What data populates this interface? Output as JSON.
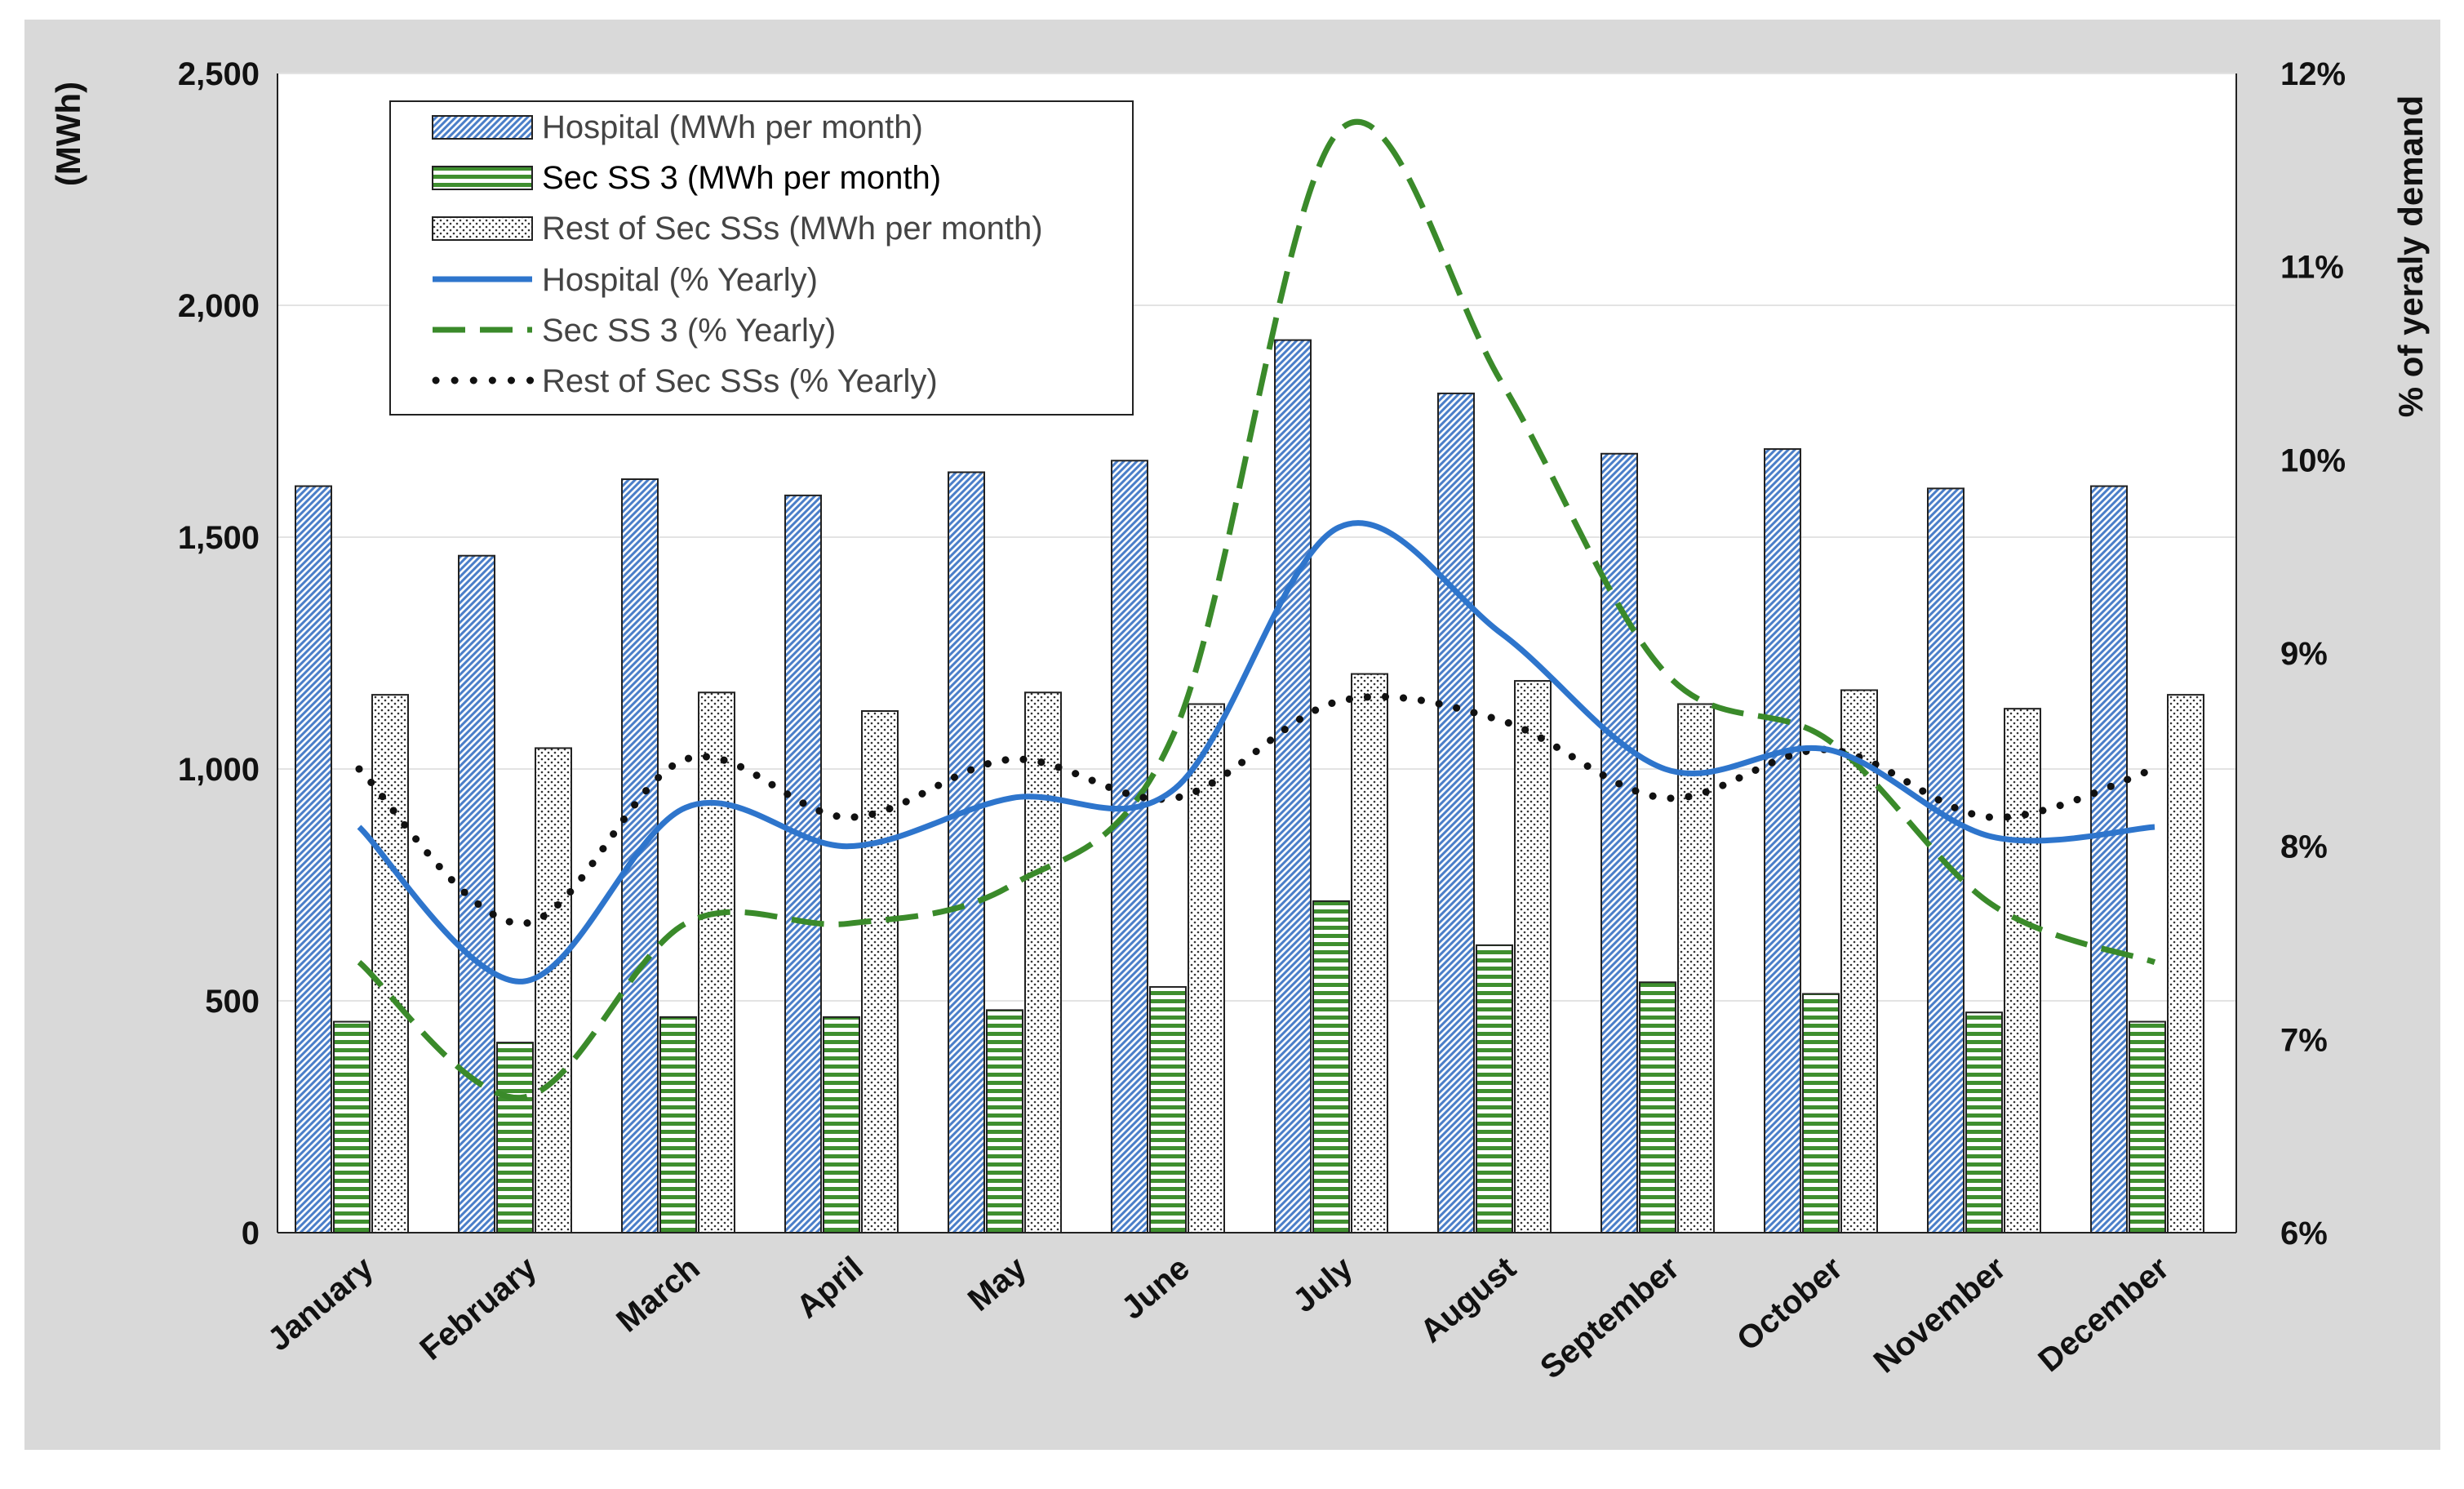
{
  "chart_data": {
    "type": "bar",
    "title": "",
    "categories": [
      "January",
      "February",
      "March",
      "April",
      "May",
      "June",
      "July",
      "August",
      "September",
      "October",
      "November",
      "December"
    ],
    "xlabel": "",
    "ylabel": "(MWh)",
    "ylabel_right": "% of yeraly demand",
    "ylim": [
      0,
      2500
    ],
    "y_ticks": [
      "0",
      "500",
      "1,000",
      "1,500",
      "2,000",
      "2,500"
    ],
    "y_tick_values": [
      0,
      500,
      1000,
      1500,
      2000,
      2500
    ],
    "ylim_right": [
      6,
      12
    ],
    "y_ticks_right": [
      "6%",
      "7%",
      "8%",
      "9%",
      "10%",
      "11%",
      "12%"
    ],
    "y_tick_values_right": [
      6,
      7,
      8,
      9,
      10,
      11,
      12
    ],
    "grid": true,
    "legend_position": "top-left",
    "bar_series": [
      {
        "name": "Hospital (MWh per month)",
        "values": [
          1610,
          1460,
          1625,
          1590,
          1640,
          1665,
          1925,
          1810,
          1680,
          1690,
          1605,
          1610
        ],
        "color": "#4a7ec8",
        "pattern": "diagonal"
      },
      {
        "name": "Sec SS 3 (MWh per month)",
        "values": [
          455,
          410,
          465,
          465,
          480,
          530,
          715,
          620,
          540,
          515,
          475,
          455
        ],
        "color": "#3f8f2f",
        "pattern": "horizontal"
      },
      {
        "name": "Rest of Sec SSs (MWh per month)",
        "values": [
          1160,
          1045,
          1165,
          1125,
          1165,
          1140,
          1205,
          1190,
          1140,
          1170,
          1130,
          1160
        ],
        "color": "#444444",
        "pattern": "dots"
      }
    ],
    "line_series": [
      {
        "name": "Hospital (% Yearly)",
        "values": [
          8.1,
          7.3,
          8.2,
          8.0,
          8.25,
          8.3,
          9.65,
          9.1,
          8.4,
          8.5,
          8.05,
          8.1
        ],
        "color": "#2e75cc",
        "style": "solid"
      },
      {
        "name": "Sec SS 3 (% Yearly)",
        "values": [
          7.4,
          6.7,
          7.6,
          7.6,
          7.8,
          8.6,
          11.7,
          10.4,
          8.9,
          8.55,
          7.7,
          7.4
        ],
        "color": "#3a8a2a",
        "style": "dashed"
      },
      {
        "name": "Rest of Sec SSs (% Yearly)",
        "values": [
          8.4,
          7.6,
          8.45,
          8.15,
          8.45,
          8.25,
          8.75,
          8.65,
          8.25,
          8.5,
          8.15,
          8.4
        ],
        "color": "#111111",
        "style": "dotted"
      }
    ]
  }
}
